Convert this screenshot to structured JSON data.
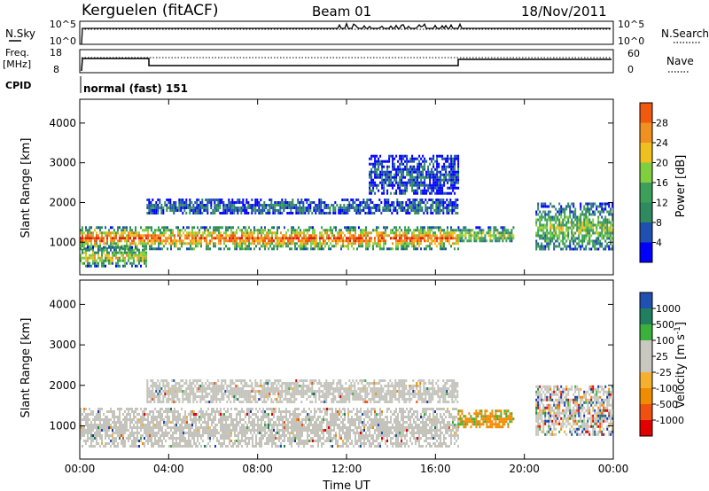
{
  "header": {
    "station": "Kerguelen (fitACF)",
    "beam": "Beam 01",
    "date": "18/Nov/2011"
  },
  "noise_panel": {
    "left_label": "N.Sky",
    "right_label": "N.Search",
    "ticks": [
      "10^5",
      "10^0"
    ]
  },
  "freq_panel": {
    "left_label_1": "Freq.",
    "left_label_2": "[MHz]",
    "left_ticks": [
      "18",
      "8"
    ],
    "right_label": "Nave",
    "right_ticks": [
      "60",
      "0"
    ]
  },
  "cpid": {
    "label": "CPID",
    "mode": "normal (fast) 151"
  },
  "colors": {
    "power": [
      "#0000ff",
      "#1f4fb0",
      "#2f8a5f",
      "#3ca05a",
      "#7fcf3f",
      "#f0c020",
      "#f09020",
      "#f05a10",
      "#e02010"
    ],
    "velocity": [
      "#e00000",
      "#f05010",
      "#f08c00",
      "#f5b030",
      "#c8c8c0",
      "#c8c8c0",
      "#3cb03c",
      "#1f7f5f",
      "#2050b0",
      "#1a33aa"
    ],
    "ground_scatter": "#c4c4bc"
  },
  "chart_data": [
    {
      "type": "heatmap",
      "name": "power",
      "ylabel": "Slant Range [km]",
      "yticks": [
        1000,
        2000,
        3000,
        4000
      ],
      "ylim": [
        180,
        4600
      ],
      "xlim_hours": [
        0,
        24
      ],
      "colorbar": {
        "label": "Power [dB]",
        "ticks": [
          "4",
          "8",
          "12",
          "16",
          "20",
          "24",
          "28"
        ],
        "range": [
          0,
          32
        ]
      },
      "bands": [
        {
          "t0": 0,
          "t1": 17,
          "r0": 850,
          "r1": 1400,
          "intensity": 0.85
        },
        {
          "t0": 0,
          "t1": 3,
          "r0": 400,
          "r1": 900,
          "intensity": 0.6
        },
        {
          "t0": 3,
          "t1": 17,
          "r0": 1700,
          "r1": 2100,
          "intensity": 0.25
        },
        {
          "t0": 13,
          "t1": 17,
          "r0": 2200,
          "r1": 3200,
          "intensity": 0.2
        },
        {
          "t0": 17,
          "t1": 19.5,
          "r0": 1000,
          "r1": 1400,
          "intensity": 0.55
        },
        {
          "t0": 20.5,
          "t1": 24,
          "r0": 800,
          "r1": 2000,
          "intensity": 0.5
        }
      ]
    },
    {
      "type": "heatmap",
      "name": "velocity",
      "ylabel": "Slant Range [km]",
      "xlabel": "Time UT",
      "yticks": [
        1000,
        2000,
        3000,
        4000
      ],
      "ylim": [
        180,
        4600
      ],
      "xlim_hours": [
        0,
        24
      ],
      "xticks": [
        "00:00",
        "04:00",
        "08:00",
        "12:00",
        "16:00",
        "20:00",
        "00:00"
      ],
      "colorbar": {
        "label": "Velocity [m s",
        "label_sup": "-1",
        "label_end": "]",
        "ticks": [
          "-1000",
          "-500",
          "-100",
          "-25",
          "25",
          "100",
          "500",
          "1000"
        ]
      },
      "bands": [
        {
          "t0": 0,
          "t1": 17,
          "r0": 500,
          "r1": 1450,
          "kind": "ground"
        },
        {
          "t0": 3,
          "t1": 17,
          "r0": 1600,
          "r1": 2150,
          "kind": "ground"
        },
        {
          "t0": 17,
          "t1": 19.5,
          "r0": 1000,
          "r1": 1400,
          "kind": "negative"
        },
        {
          "t0": 20.5,
          "t1": 24,
          "r0": 800,
          "r1": 2000,
          "kind": "mixed"
        }
      ]
    }
  ]
}
